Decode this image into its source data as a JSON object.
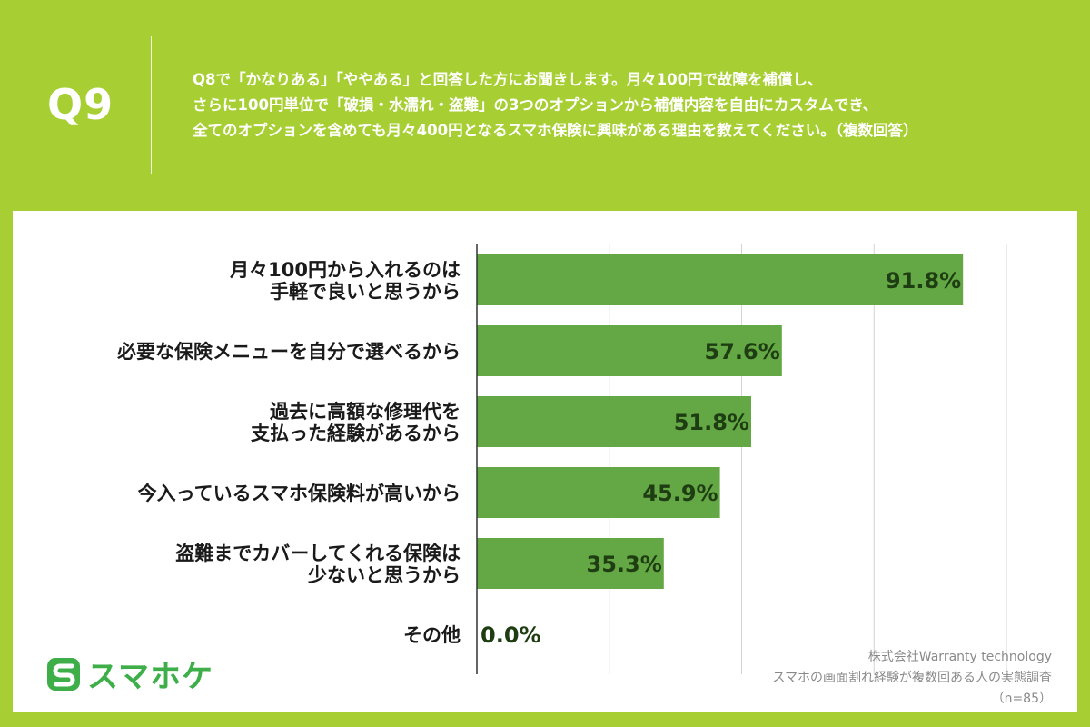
{
  "header": {
    "question_number": "Q9",
    "question_lines": [
      "Q8で「かなりある」「ややある」と回答した方にお聞きします。月々100円で故障を補償し、",
      "さらに100円単位で「破損・水濡れ・盗難」の3つのオプションから補償内容を自由にカスタムでき、",
      "全てのオプションを含めても月々400円となるスマホ保険に興味がある理由を教えてください。（複数回答）"
    ]
  },
  "chart_data": {
    "type": "bar",
    "orientation": "horizontal",
    "categories": [
      [
        "月々100円から入れるのは",
        "手軽で良いと思うから"
      ],
      [
        "必要な保険メニューを自分で選べるから"
      ],
      [
        "過去に高額な修理代を",
        "支払った経験があるから"
      ],
      [
        "今入っているスマホ保険料が高いから"
      ],
      [
        "盗難までカバーしてくれる保険は",
        "少ないと思うから"
      ],
      [
        "その他"
      ]
    ],
    "values": [
      91.8,
      57.6,
      51.8,
      45.9,
      35.3,
      0.0
    ],
    "value_labels": [
      "91.8%",
      "57.6%",
      "51.8%",
      "45.9%",
      "35.3%",
      "0.0%"
    ],
    "xlim": [
      0,
      100
    ],
    "grid": true,
    "bar_color": "#63a844",
    "gridline_color": "#d4d4d4",
    "axis_color": "#333333"
  },
  "footer": {
    "logo_text": "スマホケ",
    "logo_color": "#3eae48",
    "source_lines": [
      "株式会社Warranty technology",
      "スマホの画面割れ経験が複数回ある人の実態調査",
      "（n=85）"
    ]
  },
  "theme": {
    "background": "#a7cf33",
    "panel": "#ffffff"
  }
}
